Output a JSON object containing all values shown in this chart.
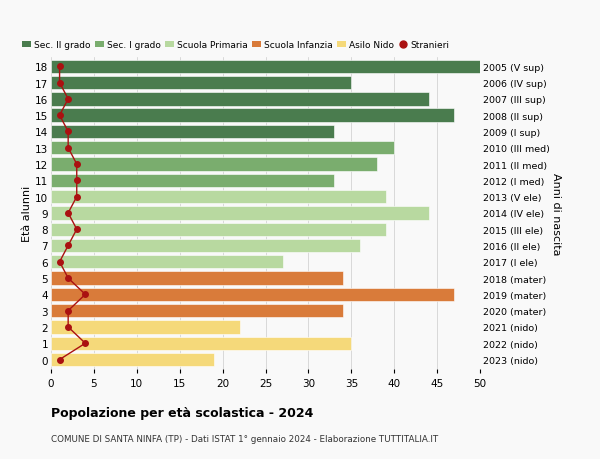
{
  "ages": [
    18,
    17,
    16,
    15,
    14,
    13,
    12,
    11,
    10,
    9,
    8,
    7,
    6,
    5,
    4,
    3,
    2,
    1,
    0
  ],
  "right_labels": [
    "2005 (V sup)",
    "2006 (IV sup)",
    "2007 (III sup)",
    "2008 (II sup)",
    "2009 (I sup)",
    "2010 (III med)",
    "2011 (II med)",
    "2012 (I med)",
    "2013 (V ele)",
    "2014 (IV ele)",
    "2015 (III ele)",
    "2016 (II ele)",
    "2017 (I ele)",
    "2018 (mater)",
    "2019 (mater)",
    "2020 (mater)",
    "2021 (nido)",
    "2022 (nido)",
    "2023 (nido)"
  ],
  "bar_values": [
    51,
    35,
    44,
    47,
    33,
    40,
    38,
    33,
    39,
    44,
    39,
    36,
    27,
    34,
    47,
    34,
    22,
    35,
    19
  ],
  "stranieri": [
    1,
    1,
    2,
    1,
    2,
    2,
    3,
    3,
    3,
    2,
    3,
    2,
    1,
    2,
    4,
    2,
    2,
    4,
    1
  ],
  "bar_colors": [
    "#4a7c4e",
    "#4a7c4e",
    "#4a7c4e",
    "#4a7c4e",
    "#4a7c4e",
    "#7aad6e",
    "#7aad6e",
    "#7aad6e",
    "#b8d9a0",
    "#b8d9a0",
    "#b8d9a0",
    "#b8d9a0",
    "#b8d9a0",
    "#d97b3a",
    "#d97b3a",
    "#d97b3a",
    "#f5d97a",
    "#f5d97a",
    "#f5d97a"
  ],
  "legend_labels": [
    "Sec. II grado",
    "Sec. I grado",
    "Scuola Primaria",
    "Scuola Infanzia",
    "Asilo Nido",
    "Stranieri"
  ],
  "legend_colors": [
    "#4a7c4e",
    "#7aad6e",
    "#b8d9a0",
    "#d97b3a",
    "#f5d97a",
    "#aa1111"
  ],
  "stranieri_color": "#aa1111",
  "xlim": [
    0,
    50
  ],
  "xticks": [
    0,
    5,
    10,
    15,
    20,
    25,
    30,
    35,
    40,
    45,
    50
  ],
  "ylabel_left": "Età alunni",
  "ylabel_right": "Anni di nascita",
  "title": "Popolazione per età scolastica - 2024",
  "subtitle": "COMUNE DI SANTA NINFA (TP) - Dati ISTAT 1° gennaio 2024 - Elaborazione TUTTITALIA.IT",
  "bg_color": "#f9f9f9",
  "bar_height": 0.82,
  "grid_color": "#cccccc"
}
